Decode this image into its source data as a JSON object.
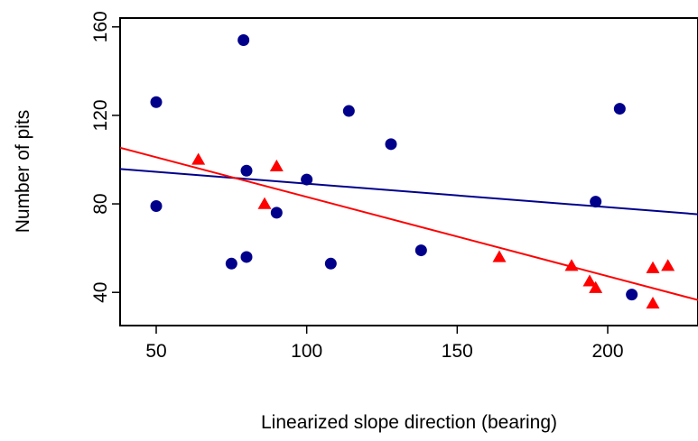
{
  "chart_data": {
    "type": "scatter",
    "title": "",
    "xlabel": "Linearized slope direction (bearing)",
    "ylabel": "Number of pits",
    "xlim": [
      38,
      230
    ],
    "ylim": [
      25,
      164
    ],
    "x_ticks": [
      50,
      100,
      150,
      200
    ],
    "y_ticks": [
      40,
      80,
      120,
      160
    ],
    "grid": false,
    "legend": "none",
    "series": [
      {
        "marker": "circle",
        "color": "#00008B",
        "points": [
          [
            50,
            79
          ],
          [
            50,
            126
          ],
          [
            75,
            53
          ],
          [
            79,
            154
          ],
          [
            80,
            95
          ],
          [
            80,
            56
          ],
          [
            90,
            76
          ],
          [
            100,
            91
          ],
          [
            108,
            53
          ],
          [
            114,
            122
          ],
          [
            128,
            107
          ],
          [
            138,
            59
          ],
          [
            196,
            81
          ],
          [
            204,
            123
          ],
          [
            208,
            39
          ]
        ],
        "fit_line": {
          "color": "#00008B",
          "intercept": 99.8,
          "slope": -0.1065
        }
      },
      {
        "marker": "triangle",
        "color": "#FF0000",
        "points": [
          [
            64,
            100
          ],
          [
            86,
            80
          ],
          [
            90,
            97
          ],
          [
            164,
            56
          ],
          [
            188,
            52
          ],
          [
            194,
            45
          ],
          [
            196,
            42
          ],
          [
            215,
            51
          ],
          [
            215,
            35
          ],
          [
            220,
            52
          ]
        ],
        "fit_line": {
          "color": "#FF0000",
          "intercept": 119.0,
          "slope": -0.3585
        }
      }
    ]
  }
}
